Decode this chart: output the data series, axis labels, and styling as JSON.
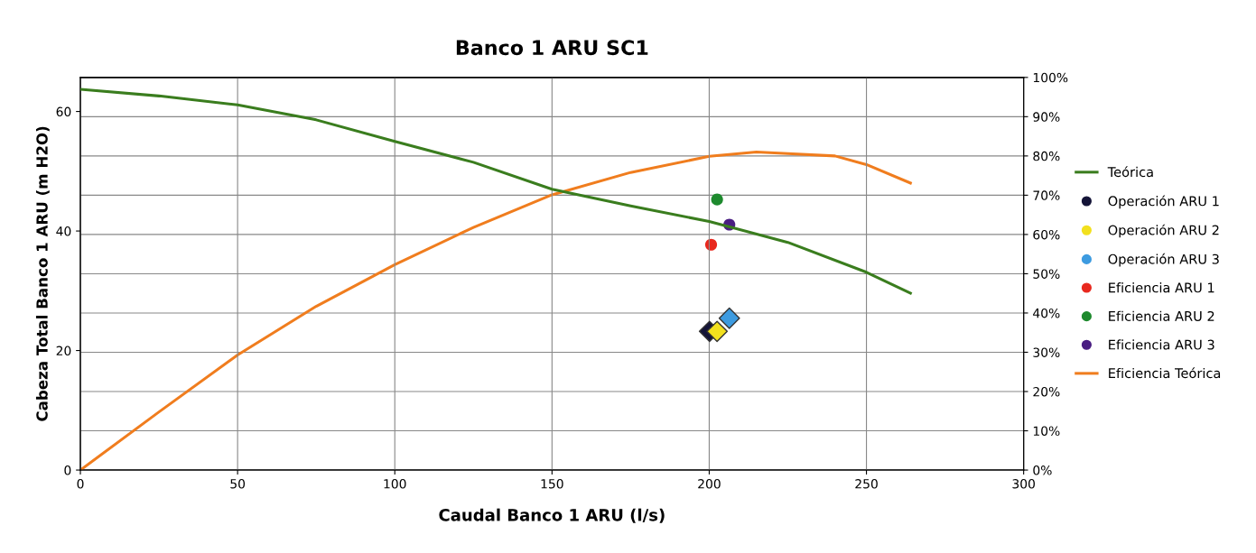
{
  "chart_data": {
    "type": "line",
    "title": "Banco 1 ARU SC1",
    "xlabel": "Caudal Banco 1 ARU (l/s)",
    "ylabel": "Cabeza Total Banco 1 ARU (m H2O)",
    "xlim": [
      0,
      300
    ],
    "xticks": [
      0,
      50,
      100,
      150,
      200,
      250,
      300
    ],
    "ylim": [
      0,
      65.7
    ],
    "yticks": [
      0,
      20,
      40,
      60
    ],
    "y2lim": [
      0,
      100
    ],
    "y2ticks": [
      {
        "value": 0,
        "label": "0%"
      },
      {
        "value": 10,
        "label": "10%"
      },
      {
        "value": 20,
        "label": "20%"
      },
      {
        "value": 30,
        "label": "30%"
      },
      {
        "value": 40,
        "label": "40%"
      },
      {
        "value": 50,
        "label": "50%"
      },
      {
        "value": 60,
        "label": "60%"
      },
      {
        "value": 70,
        "label": "70%"
      },
      {
        "value": 80,
        "label": "80%"
      },
      {
        "value": 90,
        "label": "90%"
      },
      {
        "value": 100,
        "label": "100%"
      }
    ],
    "grid": true,
    "legend": "right",
    "series": [
      {
        "name": "Teórica",
        "color": "#3a7d1e",
        "x": [
          0,
          25,
          50,
          75,
          100,
          125,
          150,
          175,
          200,
          225,
          250,
          264
        ],
        "values": [
          63.7,
          62.6,
          61.1,
          58.6,
          55.0,
          51.5,
          47.0,
          44.2,
          41.6,
          38.1,
          33.1,
          29.6
        ]
      },
      {
        "name": "Operación ARU 1",
        "type": "scatter",
        "marker": "diamond",
        "color": "#141438",
        "x": [
          200.1
        ],
        "values": [
          23.2
        ]
      },
      {
        "name": "Operación ARU 2",
        "type": "scatter",
        "marker": "diamond",
        "color": "#f2e01e",
        "x": [
          202.5
        ],
        "values": [
          23.2
        ]
      },
      {
        "name": "Operación ARU 3",
        "type": "scatter",
        "marker": "diamond",
        "color": "#3d9be0",
        "x": [
          206.4
        ],
        "values": [
          25.4
        ]
      },
      {
        "name": "Eficiencia ARU 1",
        "type": "scatter",
        "marker": "circle",
        "axis": "y2",
        "color": "#e8281e",
        "x": [
          200.6
        ],
        "values": [
          57.4
        ]
      },
      {
        "name": "Eficiencia ARU 2",
        "type": "scatter",
        "marker": "circle",
        "axis": "y2",
        "color": "#1e8a2e",
        "x": [
          202.5
        ],
        "values": [
          68.9
        ]
      },
      {
        "name": "Eficiencia ARU 3",
        "type": "scatter",
        "marker": "circle",
        "axis": "y2",
        "color": "#4a1e82",
        "x": [
          206.4
        ],
        "values": [
          62.5
        ]
      },
      {
        "name": "Eficiencia Teórica",
        "axis": "y2",
        "color": "#f07d1e",
        "x": [
          0,
          25,
          50,
          75,
          100,
          125,
          150,
          175,
          200,
          215,
          225,
          240,
          250,
          264
        ],
        "values": [
          0,
          14.8,
          29.3,
          41.7,
          52.3,
          61.8,
          70.1,
          75.8,
          79.9,
          81.0,
          80.6,
          80.0,
          77.8,
          73.1
        ]
      }
    ]
  }
}
